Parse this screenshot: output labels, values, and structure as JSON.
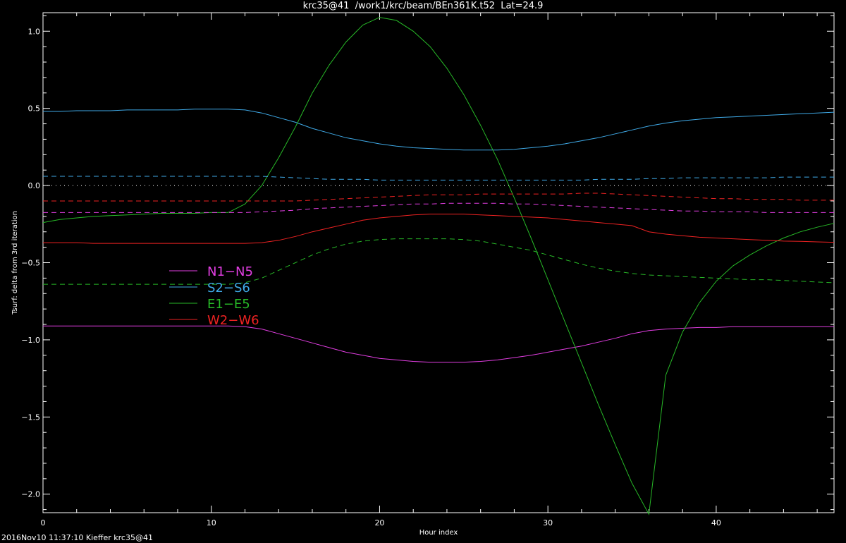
{
  "colors": {
    "background": "#000000",
    "axis": "#ffffff",
    "n": "#e23ee2",
    "s": "#3fa9e6",
    "e": "#27b827",
    "w": "#ee2222",
    "zero": "#ffffff"
  },
  "footer": "2016Nov10 11:37:10 Kieffer krc35@41",
  "chart_data": {
    "type": "line",
    "title": "krc35@41  /work1/krc/beam/BEn361K.t52  Lat=24.9",
    "xlabel": "Hour index",
    "ylabel": "Tsurf: delta from 3rd iteration",
    "xlim": [
      0,
      47
    ],
    "ylim": [
      -2.12,
      1.12
    ],
    "xticks": [
      0,
      10,
      20,
      30,
      40
    ],
    "xtick_labels": [
      "0",
      "10",
      "20",
      "30",
      "40"
    ],
    "yticks": [
      1.0,
      0.5,
      0.0,
      -0.5,
      -1.0,
      -1.5,
      -2.0
    ],
    "ytick_labels": [
      "1.0",
      "0.5",
      "0.0",
      "−0.5",
      "−1.0",
      "−1.5",
      "−2.0"
    ],
    "legend": [
      {
        "label": "N1−N5",
        "color": "#e23ee2"
      },
      {
        "label": "S2−S6",
        "color": "#3fa9e6"
      },
      {
        "label": "E1−E5",
        "color": "#27b827"
      },
      {
        "label": "W2−W6",
        "color": "#ee2222"
      }
    ],
    "x": [
      0,
      1,
      2,
      3,
      4,
      5,
      6,
      7,
      8,
      9,
      10,
      11,
      12,
      13,
      14,
      15,
      16,
      17,
      18,
      19,
      20,
      21,
      22,
      23,
      24,
      25,
      26,
      27,
      28,
      29,
      30,
      31,
      32,
      33,
      34,
      35,
      36,
      37,
      38,
      39,
      40,
      41,
      42,
      43,
      44,
      45,
      46,
      47
    ],
    "series": [
      {
        "name": "N1-N5",
        "color": "#e23ee2",
        "dash": false,
        "values": [
          -0.91,
          -0.91,
          -0.91,
          -0.91,
          -0.91,
          -0.91,
          -0.91,
          -0.91,
          -0.91,
          -0.91,
          -0.91,
          -0.91,
          -0.915,
          -0.93,
          -0.96,
          -0.99,
          -1.02,
          -1.05,
          -1.08,
          -1.1,
          -1.12,
          -1.13,
          -1.14,
          -1.145,
          -1.145,
          -1.145,
          -1.14,
          -1.13,
          -1.115,
          -1.1,
          -1.08,
          -1.06,
          -1.04,
          -1.015,
          -0.99,
          -0.96,
          -0.94,
          -0.93,
          -0.925,
          -0.92,
          -0.92,
          -0.915,
          -0.915,
          -0.915,
          -0.915,
          -0.915,
          -0.915,
          -0.915
        ]
      },
      {
        "name": "S2-S6",
        "color": "#3fa9e6",
        "dash": false,
        "values": [
          0.48,
          0.48,
          0.485,
          0.485,
          0.485,
          0.49,
          0.49,
          0.49,
          0.49,
          0.495,
          0.495,
          0.495,
          0.49,
          0.47,
          0.44,
          0.41,
          0.37,
          0.34,
          0.31,
          0.29,
          0.27,
          0.255,
          0.245,
          0.24,
          0.235,
          0.23,
          0.23,
          0.23,
          0.235,
          0.245,
          0.255,
          0.27,
          0.29,
          0.31,
          0.335,
          0.36,
          0.385,
          0.405,
          0.42,
          0.43,
          0.44,
          0.445,
          0.45,
          0.455,
          0.46,
          0.465,
          0.47,
          0.475
        ]
      },
      {
        "name": "E1-E5",
        "color": "#27b827",
        "dash": false,
        "values": [
          -0.24,
          -0.22,
          -0.21,
          -0.2,
          -0.195,
          -0.19,
          -0.185,
          -0.18,
          -0.18,
          -0.18,
          -0.175,
          -0.175,
          -0.12,
          0.0,
          0.18,
          0.38,
          0.6,
          0.78,
          0.93,
          1.04,
          1.09,
          1.07,
          1.0,
          0.9,
          0.76,
          0.59,
          0.39,
          0.17,
          -0.08,
          -0.34,
          -0.61,
          -0.88,
          -1.15,
          -1.42,
          -1.68,
          -1.93,
          -2.13,
          -1.23,
          -0.95,
          -0.76,
          -0.62,
          -0.52,
          -0.45,
          -0.39,
          -0.34,
          -0.3,
          -0.27,
          -0.245
        ]
      },
      {
        "name": "W2-W6",
        "color": "#ee2222",
        "dash": false,
        "values": [
          -0.37,
          -0.37,
          -0.37,
          -0.375,
          -0.375,
          -0.375,
          -0.375,
          -0.375,
          -0.375,
          -0.375,
          -0.375,
          -0.375,
          -0.375,
          -0.37,
          -0.355,
          -0.33,
          -0.3,
          -0.275,
          -0.25,
          -0.225,
          -0.21,
          -0.2,
          -0.19,
          -0.185,
          -0.185,
          -0.185,
          -0.19,
          -0.195,
          -0.2,
          -0.205,
          -0.21,
          -0.22,
          -0.23,
          -0.24,
          -0.25,
          -0.26,
          -0.3,
          -0.315,
          -0.325,
          -0.335,
          -0.34,
          -0.345,
          -0.35,
          -0.355,
          -0.36,
          -0.362,
          -0.365,
          -0.368
        ]
      },
      {
        "name": "N1-N5 (dashed)",
        "color": "#e23ee2",
        "dash": true,
        "values": [
          -0.175,
          -0.175,
          -0.175,
          -0.175,
          -0.175,
          -0.175,
          -0.175,
          -0.175,
          -0.175,
          -0.175,
          -0.175,
          -0.175,
          -0.175,
          -0.17,
          -0.165,
          -0.16,
          -0.15,
          -0.145,
          -0.14,
          -0.135,
          -0.13,
          -0.125,
          -0.12,
          -0.12,
          -0.115,
          -0.115,
          -0.115,
          -0.115,
          -0.12,
          -0.12,
          -0.125,
          -0.13,
          -0.135,
          -0.14,
          -0.145,
          -0.15,
          -0.155,
          -0.16,
          -0.165,
          -0.165,
          -0.17,
          -0.17,
          -0.17,
          -0.175,
          -0.175,
          -0.175,
          -0.175,
          -0.175
        ]
      },
      {
        "name": "S2-S6 (dashed)",
        "color": "#3fa9e6",
        "dash": true,
        "values": [
          0.06,
          0.06,
          0.06,
          0.06,
          0.06,
          0.06,
          0.06,
          0.06,
          0.06,
          0.06,
          0.06,
          0.06,
          0.06,
          0.06,
          0.055,
          0.05,
          0.045,
          0.04,
          0.04,
          0.04,
          0.035,
          0.035,
          0.035,
          0.035,
          0.035,
          0.035,
          0.035,
          0.035,
          0.035,
          0.035,
          0.035,
          0.035,
          0.035,
          0.04,
          0.04,
          0.04,
          0.045,
          0.045,
          0.05,
          0.05,
          0.05,
          0.05,
          0.05,
          0.05,
          0.055,
          0.055,
          0.055,
          0.055
        ]
      },
      {
        "name": "E1-E5 (dashed)",
        "color": "#27b827",
        "dash": true,
        "values": [
          -0.64,
          -0.64,
          -0.64,
          -0.64,
          -0.64,
          -0.64,
          -0.64,
          -0.64,
          -0.64,
          -0.64,
          -0.64,
          -0.64,
          -0.63,
          -0.6,
          -0.55,
          -0.5,
          -0.45,
          -0.41,
          -0.38,
          -0.36,
          -0.35,
          -0.345,
          -0.345,
          -0.345,
          -0.345,
          -0.35,
          -0.36,
          -0.38,
          -0.4,
          -0.42,
          -0.45,
          -0.48,
          -0.51,
          -0.535,
          -0.555,
          -0.57,
          -0.58,
          -0.585,
          -0.59,
          -0.595,
          -0.6,
          -0.605,
          -0.61,
          -0.61,
          -0.615,
          -0.62,
          -0.625,
          -0.63
        ]
      },
      {
        "name": "W2-W6 (dashed)",
        "color": "#ee2222",
        "dash": true,
        "values": [
          -0.1,
          -0.1,
          -0.1,
          -0.1,
          -0.1,
          -0.1,
          -0.1,
          -0.1,
          -0.1,
          -0.1,
          -0.1,
          -0.1,
          -0.1,
          -0.1,
          -0.1,
          -0.1,
          -0.095,
          -0.09,
          -0.085,
          -0.08,
          -0.075,
          -0.07,
          -0.065,
          -0.06,
          -0.06,
          -0.06,
          -0.055,
          -0.055,
          -0.055,
          -0.055,
          -0.055,
          -0.055,
          -0.05,
          -0.05,
          -0.055,
          -0.06,
          -0.065,
          -0.07,
          -0.075,
          -0.08,
          -0.085,
          -0.085,
          -0.09,
          -0.09,
          -0.09,
          -0.095,
          -0.095,
          -0.095
        ]
      },
      {
        "name": "zero",
        "color": "#ffffff",
        "dash": "dot",
        "values": [
          0,
          0,
          0,
          0,
          0,
          0,
          0,
          0,
          0,
          0,
          0,
          0,
          0,
          0,
          0,
          0,
          0,
          0,
          0,
          0,
          0,
          0,
          0,
          0,
          0,
          0,
          0,
          0,
          0,
          0,
          0,
          0,
          0,
          0,
          0,
          0,
          0,
          0,
          0,
          0,
          0,
          0,
          0,
          0,
          0,
          0,
          0,
          0
        ]
      }
    ]
  }
}
